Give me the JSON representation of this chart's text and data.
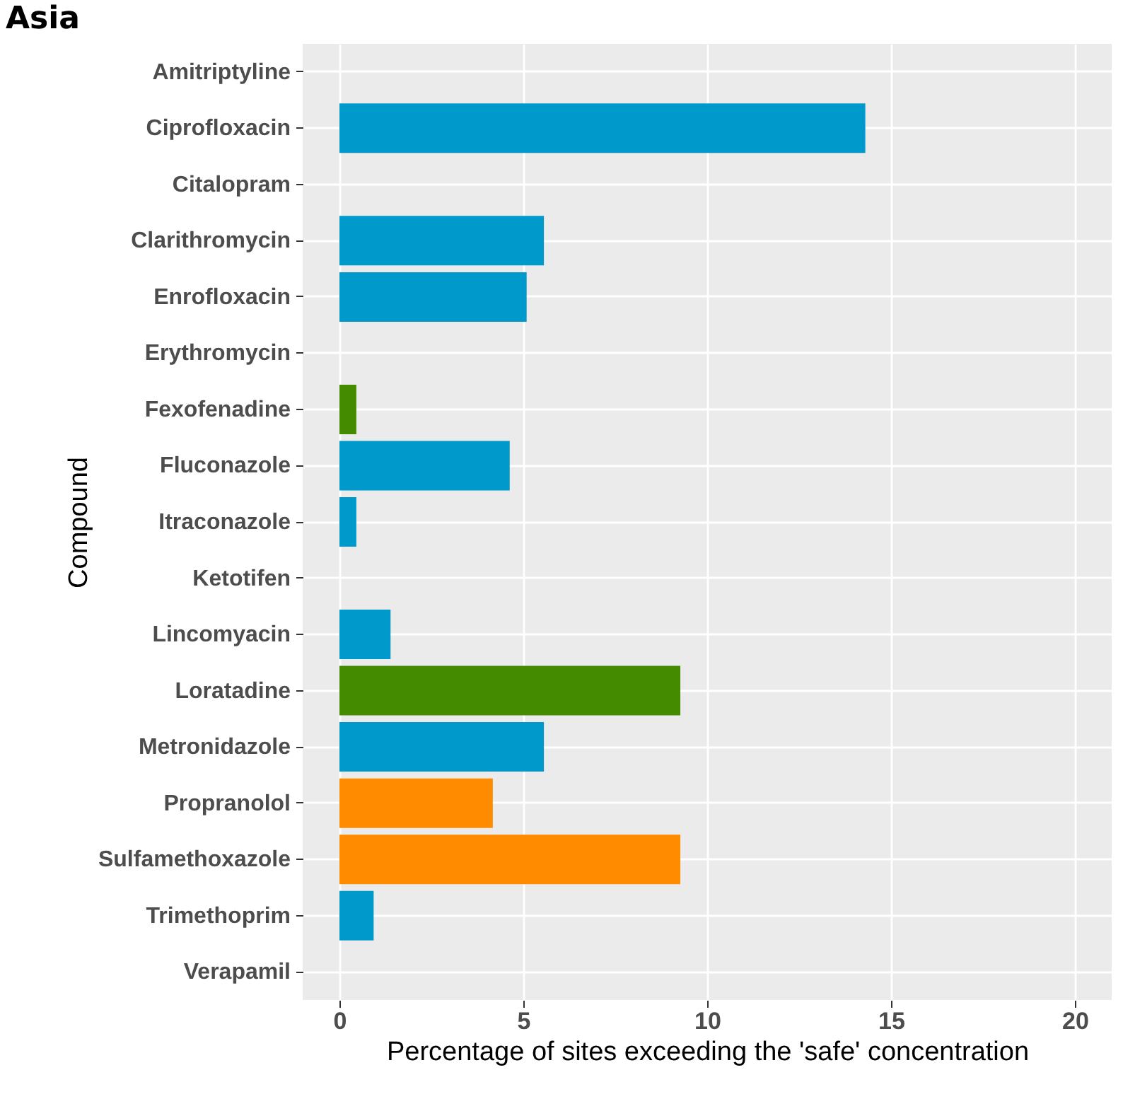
{
  "chart_data": {
    "type": "bar",
    "orientation": "horizontal",
    "title": "Asia",
    "xlabel": "Percentage of sites exceeding the 'safe' concentration",
    "ylabel": "Compound",
    "categories": [
      "Amitriptyline",
      "Ciprofloxacin",
      "Citalopram",
      "Clarithromycin",
      "Enrofloxacin",
      "Erythromycin",
      "Fexofenadine",
      "Fluconazole",
      "Itraconazole",
      "Ketotifen",
      "Lincomyacin",
      "Loratadine",
      "Metronidazole",
      "Propranolol",
      "Sulfamethoxazole",
      "Trimethoprim",
      "Verapamil"
    ],
    "values": [
      null,
      14.3,
      null,
      5.56,
      5.09,
      null,
      0.46,
      4.63,
      0.46,
      null,
      1.39,
      9.27,
      5.56,
      4.17,
      9.27,
      0.93,
      null
    ],
    "colors": [
      null,
      "#0099cc",
      null,
      "#0099cc",
      "#0099cc",
      null,
      "#458b00",
      "#0099cc",
      "#0099cc",
      null,
      "#0099cc",
      "#458b00",
      "#0099cc",
      "#ff8c00",
      "#ff8c00",
      "#0099cc",
      null
    ],
    "xlim": [
      -1,
      21
    ],
    "xticks": [
      0,
      5,
      10,
      15,
      20
    ],
    "grid": true
  }
}
